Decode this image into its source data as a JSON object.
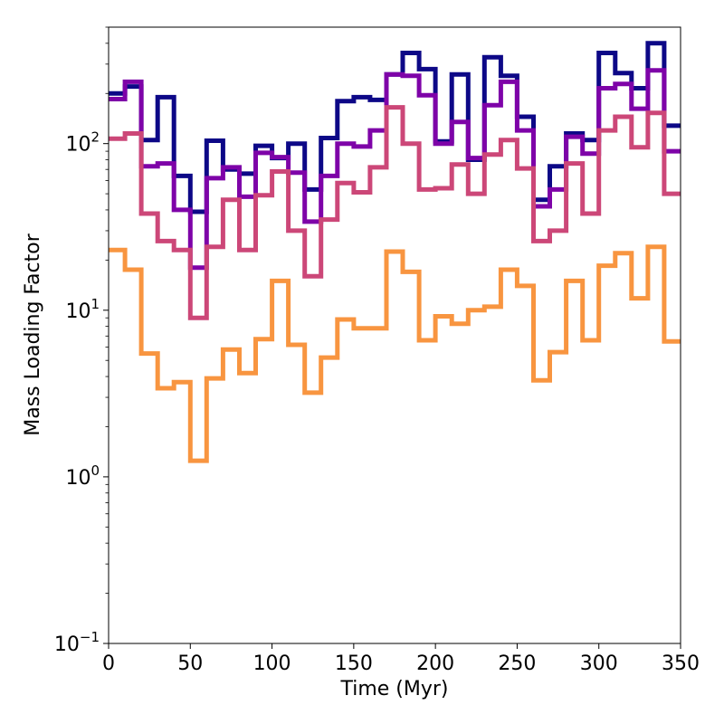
{
  "chart_data": {
    "type": "line",
    "step": true,
    "xlabel": "Time (Myr)",
    "ylabel": "Mass Loading Factor",
    "xlim": [
      0,
      350
    ],
    "ylim": [
      0.1,
      500
    ],
    "yscale": "log",
    "grid": false,
    "xticks": [
      "0",
      "50",
      "100",
      "150",
      "200",
      "250",
      "300",
      "350"
    ],
    "yticks": [
      {
        "base": "10",
        "exp": "−1",
        "value": 0.1
      },
      {
        "base": "10",
        "exp": "0",
        "value": 1
      },
      {
        "base": "10",
        "exp": "1",
        "value": 10
      },
      {
        "base": "10",
        "exp": "2",
        "value": 100
      }
    ],
    "bin_width": 10,
    "x": [
      0,
      10,
      20,
      30,
      40,
      50,
      60,
      70,
      80,
      90,
      100,
      110,
      120,
      130,
      140,
      150,
      160,
      170,
      180,
      190,
      200,
      210,
      220,
      230,
      240,
      250,
      260,
      270,
      280,
      290,
      300,
      310,
      320,
      330,
      340
    ],
    "series": [
      {
        "color": "#0d0887",
        "values": [
          200,
          220,
          105,
          190,
          64,
          39,
          104,
          70,
          66,
          97,
          82,
          100,
          53,
          108,
          180,
          190,
          183,
          260,
          350,
          280,
          103,
          260,
          80,
          330,
          255,
          145,
          46,
          73,
          115,
          105,
          350,
          265,
          215,
          400,
          128
        ]
      },
      {
        "color": "#7e03a8",
        "values": [
          185,
          235,
          73,
          76,
          40,
          18,
          62,
          72,
          48,
          88,
          83,
          67,
          34,
          64,
          100,
          96,
          120,
          260,
          255,
          195,
          100,
          135,
          82,
          170,
          235,
          120,
          42,
          53,
          110,
          87,
          215,
          228,
          162,
          275,
          90
        ]
      },
      {
        "color": "#cc4778",
        "values": [
          107,
          115,
          38,
          26,
          23,
          9,
          24,
          46,
          23,
          49,
          68,
          30,
          16,
          35,
          58,
          51,
          72,
          165,
          100,
          53,
          54,
          75,
          50,
          86,
          105,
          71,
          26,
          30,
          76,
          38,
          120,
          145,
          95,
          153,
          50
        ]
      },
      {
        "color": "#f89540",
        "values": [
          23,
          17.5,
          5.5,
          3.4,
          3.7,
          1.25,
          3.9,
          5.8,
          4.2,
          6.7,
          15,
          6.2,
          3.2,
          5.2,
          8.8,
          7.8,
          7.8,
          22.5,
          17,
          6.6,
          9.2,
          8.3,
          10,
          10.5,
          17.5,
          14,
          3.8,
          5.6,
          15,
          6.6,
          18.5,
          22,
          11.8,
          24,
          6.5
        ]
      }
    ]
  }
}
